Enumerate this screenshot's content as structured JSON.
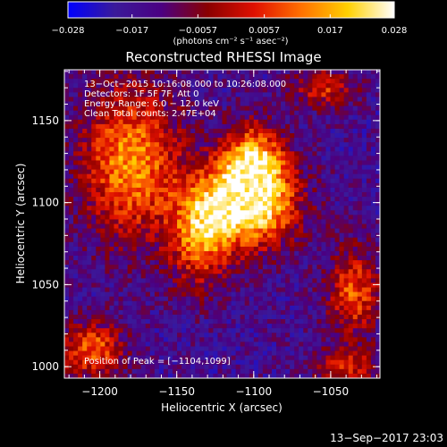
{
  "chart_data": {
    "type": "heatmap",
    "title": "Reconstructed RHESSI Image",
    "xlabel": "Heliocentric X (arcsec)",
    "ylabel": "Heliocentric Y (arcsec)",
    "xlim": [
      -1223,
      -1018
    ],
    "ylim": [
      993,
      1181
    ],
    "x_ticks": [
      -1200,
      -1150,
      -1100,
      -1050
    ],
    "x_tick_labels": [
      "−1200",
      "−1150",
      "−1100",
      "−1050"
    ],
    "y_ticks": [
      1000,
      1050,
      1100,
      1150
    ],
    "y_tick_labels": [
      "1000",
      "1050",
      "1100",
      "1150"
    ],
    "colorbar": {
      "min": -0.028,
      "max": 0.028,
      "ticks": [
        -0.028,
        -0.017,
        -0.0057,
        0.0057,
        0.017,
        0.028
      ],
      "tick_labels": [
        "−0.028",
        "−0.017",
        "−0.0057",
        "0.0057",
        "0.017",
        "0.028"
      ],
      "unit_label": "(photons cm⁻² s⁻¹ asec⁻²)",
      "colormap": [
        "#0000ff",
        "#3a1a9a",
        "#4b0082",
        "#8a0000",
        "#e01000",
        "#ff7000",
        "#ffd000",
        "#ffffff"
      ]
    },
    "info_lines": [
      "13−Oct−2015 10:16:08.000 to 10:26:08.000",
      "Detectors: 1F 5F 7F, Att 0",
      "Energy Range: 6.0 − 12.0 keV",
      "Clean    Total counts: 2.47E+04"
    ],
    "peak_text": "Position of Peak = [−1104,1099]",
    "peak": {
      "x": -1104,
      "y": 1099
    },
    "sources": [
      {
        "x": -1104,
        "y": 1099,
        "amp": 1.0,
        "sx": 22,
        "sy": 18
      },
      {
        "x": -1100,
        "y": 1125,
        "amp": 0.75,
        "sx": 14,
        "sy": 16
      },
      {
        "x": -1135,
        "y": 1080,
        "amp": 0.6,
        "sx": 14,
        "sy": 22
      },
      {
        "x": -1180,
        "y": 1125,
        "amp": 0.7,
        "sx": 22,
        "sy": 32
      },
      {
        "x": -1205,
        "y": 1010,
        "amp": 0.6,
        "sx": 14,
        "sy": 12
      },
      {
        "x": -1035,
        "y": 1045,
        "amp": 0.55,
        "sx": 12,
        "sy": 18
      },
      {
        "x": -1055,
        "y": 1170,
        "amp": 0.45,
        "sx": 14,
        "sy": 8
      },
      {
        "x": -1040,
        "y": 1000,
        "amp": 0.45,
        "sx": 14,
        "sy": 8
      }
    ]
  },
  "footer": {
    "date": "13−Sep−2017 23:03"
  }
}
